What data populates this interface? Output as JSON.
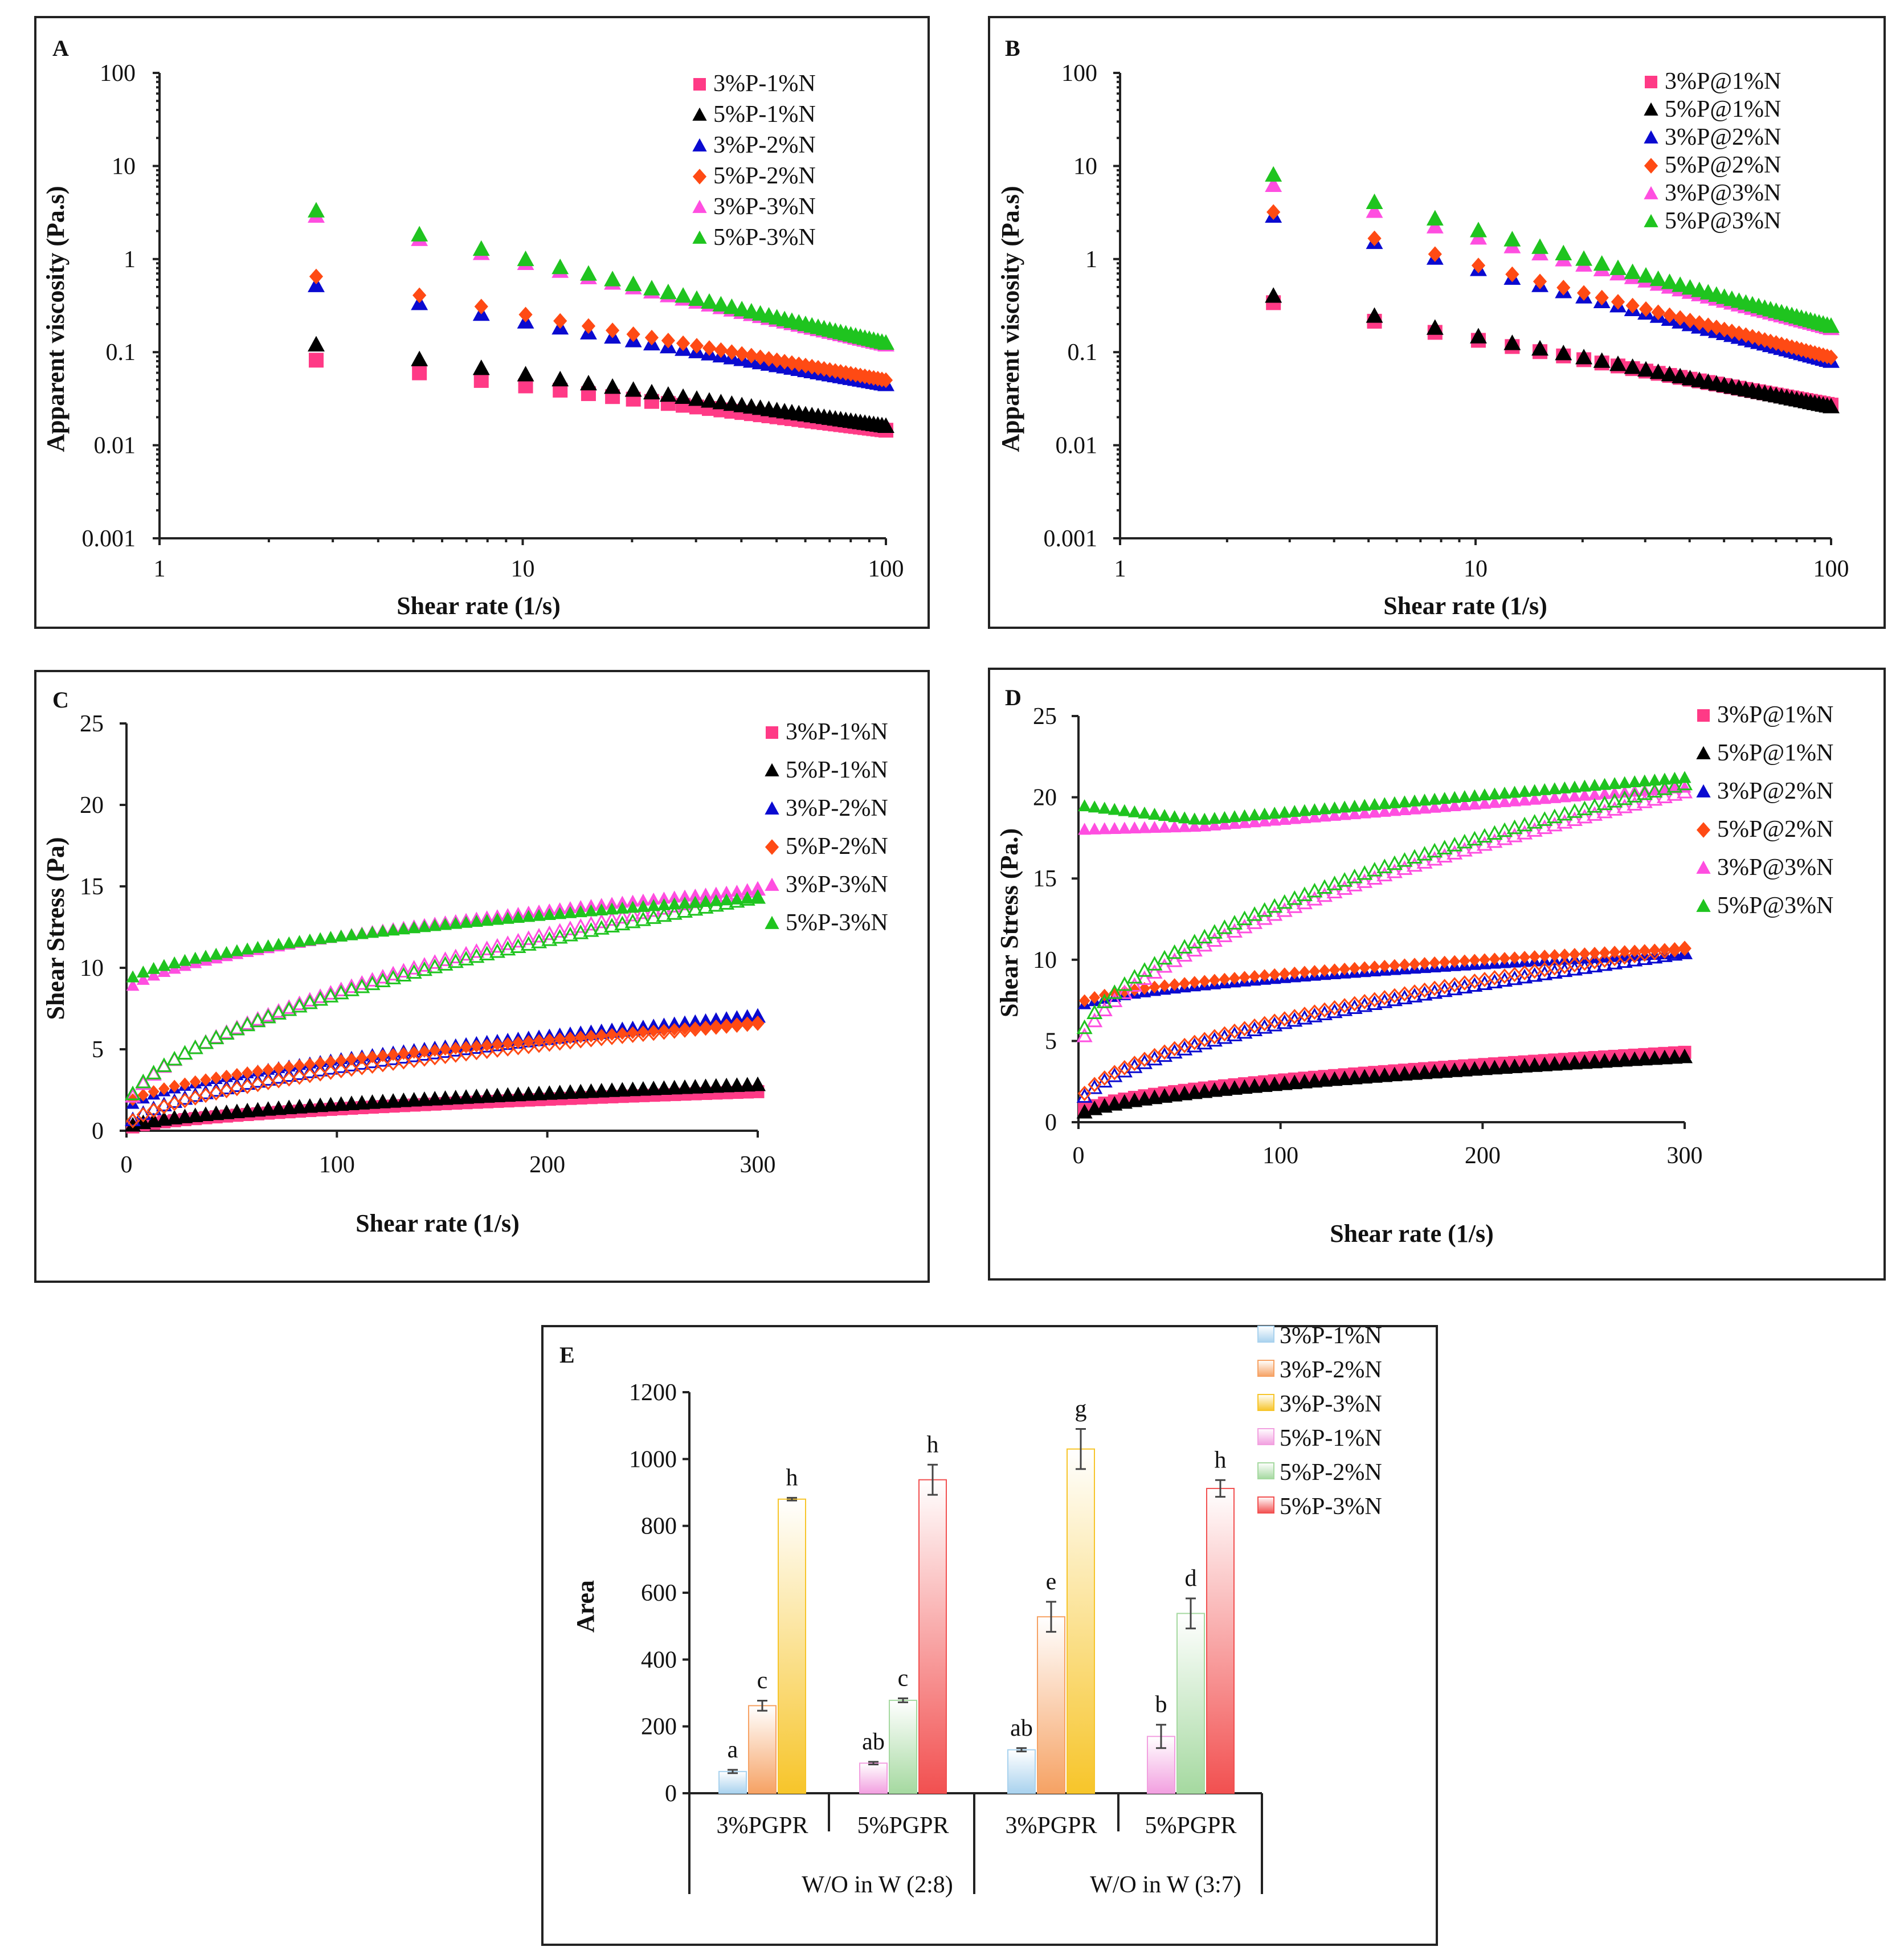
{
  "colors": {
    "pink": "#ff3a86",
    "black": "#000000",
    "blue": "#0a0ad0",
    "orange": "#ff4a14",
    "magenta": "#ff4ee0",
    "green": "#1fc41f",
    "bar_blue": "#a9d2ee",
    "bar_orange": "#f6a264",
    "bar_yellow": "#f7c52a",
    "bar_pink": "#f2a0e0",
    "bar_green": "#a5d9a0",
    "bar_red": "#f25050"
  },
  "chart_data": [
    {
      "id": "A",
      "panel_label": "A",
      "type": "scatter",
      "xscale": "log",
      "yscale": "log",
      "xlabel": "Shear rate (1/s)",
      "ylabel": "Apparent viscosity (Pa.s)",
      "xlim": [
        1,
        100
      ],
      "ylim": [
        0.001,
        100
      ],
      "xticks": [
        1,
        10,
        100
      ],
      "xtick_labels": [
        "1",
        "10",
        "100"
      ],
      "yticks": [
        0.001,
        0.01,
        0.1,
        1,
        10,
        100
      ],
      "ytick_labels": [
        "0.001",
        "0.01",
        "0.1",
        "1",
        "10",
        "100"
      ],
      "legend_position": "top-right",
      "series": [
        {
          "name": "3%P-1%N",
          "marker": "square",
          "color_key": "pink",
          "fit": {
            "type": "power",
            "x0": 2.7,
            "y0": 0.082,
            "x1": 100,
            "y1": 0.0145
          }
        },
        {
          "name": "5%P-1%N",
          "marker": "triangle",
          "color_key": "black",
          "fit": {
            "type": "power",
            "x0": 2.7,
            "y0": 0.12,
            "x1": 100,
            "y1": 0.016
          }
        },
        {
          "name": "3%P-2%N",
          "marker": "triangle",
          "color_key": "blue",
          "fit": {
            "type": "power",
            "x0": 2.7,
            "y0": 0.52,
            "x1": 100,
            "y1": 0.045
          }
        },
        {
          "name": "5%P-2%N",
          "marker": "diamond",
          "color_key": "orange",
          "fit": {
            "type": "power",
            "x0": 2.7,
            "y0": 0.65,
            "x1": 100,
            "y1": 0.05
          }
        },
        {
          "name": "3%P-3%N",
          "marker": "triangle",
          "color_key": "magenta",
          "fit": {
            "type": "power",
            "x0": 2.7,
            "y0": 2.9,
            "x1": 100,
            "y1": 0.12
          }
        },
        {
          "name": "5%P-3%N",
          "marker": "triangle",
          "color_key": "green",
          "fit": {
            "type": "power",
            "x0": 2.7,
            "y0": 3.3,
            "x1": 100,
            "y1": 0.125
          }
        }
      ]
    },
    {
      "id": "B",
      "panel_label": "B",
      "type": "scatter",
      "xscale": "log",
      "yscale": "log",
      "xlabel": "Shear rate (1/s)",
      "ylabel": "Apparent viscosity (Pa.s)",
      "xlim": [
        1,
        100
      ],
      "ylim": [
        0.001,
        100
      ],
      "xticks": [
        1,
        10,
        100
      ],
      "xtick_labels": [
        "1",
        "10",
        "100"
      ],
      "yticks": [
        0.001,
        0.01,
        0.1,
        1,
        10,
        100
      ],
      "ytick_labels": [
        "0.001",
        "0.01",
        "0.1",
        "1",
        "10",
        "100"
      ],
      "legend_position": "top-right",
      "series": [
        {
          "name": "3%P@1%N",
          "marker": "square",
          "color_key": "pink",
          "fit": {
            "type": "power",
            "x0": 2.7,
            "y0": 0.34,
            "x1": 100,
            "y1": 0.027
          }
        },
        {
          "name": "5%P@1%N",
          "marker": "triangle",
          "color_key": "black",
          "fit": {
            "type": "power",
            "x0": 2.7,
            "y0": 0.4,
            "x1": 100,
            "y1": 0.026
          }
        },
        {
          "name": "3%P@2%N",
          "marker": "triangle",
          "color_key": "blue",
          "fit": {
            "type": "power",
            "x0": 2.7,
            "y0": 2.9,
            "x1": 100,
            "y1": 0.08
          }
        },
        {
          "name": "5%P@2%N",
          "marker": "diamond",
          "color_key": "orange",
          "fit": {
            "type": "power",
            "x0": 2.7,
            "y0": 3.2,
            "x1": 100,
            "y1": 0.088
          }
        },
        {
          "name": "3%P@3%N",
          "marker": "triangle",
          "color_key": "magenta",
          "fit": {
            "type": "power",
            "x0": 2.7,
            "y0": 6.2,
            "x1": 100,
            "y1": 0.18
          }
        },
        {
          "name": "5%P@3%N",
          "marker": "triangle",
          "color_key": "green",
          "fit": {
            "type": "power",
            "x0": 2.7,
            "y0": 8.0,
            "x1": 100,
            "y1": 0.19
          }
        }
      ]
    },
    {
      "id": "C",
      "panel_label": "C",
      "type": "scatter",
      "xlabel": "Shear rate (1/s)",
      "ylabel": "Shear Stress (Pa)",
      "xlim": [
        0,
        300
      ],
      "ylim": [
        0,
        25
      ],
      "xticks": [
        0,
        100,
        200,
        300
      ],
      "xtick_labels": [
        "0",
        "100",
        "200",
        "300"
      ],
      "yticks": [
        0,
        5,
        10,
        15,
        20,
        25
      ],
      "ytick_labels": [
        "0",
        "5",
        "10",
        "15",
        "20",
        "25"
      ],
      "legend_position": "top-right",
      "series": [
        {
          "name": "3%P-1%N",
          "marker": "square",
          "color_key": "pink",
          "up": [
            [
              0,
              0.05
            ],
            [
              300,
              2.4
            ]
          ],
          "down": [
            [
              0,
              0.05
            ],
            [
              300,
              2.4
            ]
          ]
        },
        {
          "name": "5%P-1%N",
          "marker": "triangle",
          "color_key": "black",
          "up": [
            [
              0,
              0.1
            ],
            [
              300,
              2.8
            ]
          ],
          "down": [
            [
              0,
              0.1
            ],
            [
              300,
              2.8
            ]
          ]
        },
        {
          "name": "3%P-2%N",
          "marker": "triangle",
          "color_key": "blue",
          "up": [
            [
              0,
              1.2
            ],
            [
              300,
              7.0
            ]
          ],
          "down": [
            [
              0,
              0.1
            ],
            [
              300,
              7.0
            ]
          ]
        },
        {
          "name": "5%P-2%N",
          "marker": "diamond",
          "color_key": "orange",
          "up": [
            [
              0,
              1.5
            ],
            [
              300,
              6.6
            ]
          ],
          "down": [
            [
              0,
              0.1
            ],
            [
              300,
              6.6
            ]
          ]
        },
        {
          "name": "3%P-3%N",
          "marker": "triangle",
          "color_key": "magenta",
          "up": [
            [
              0,
              8.4
            ],
            [
              300,
              14.8
            ]
          ],
          "down": [
            [
              0,
              1.0
            ],
            [
              300,
              14.8
            ]
          ]
        },
        {
          "name": "5%P-3%N",
          "marker": "triangle",
          "color_key": "green",
          "up": [
            [
              0,
              9.0
            ],
            [
              300,
              14.3
            ]
          ],
          "down": [
            [
              0,
              1.2
            ],
            [
              300,
              14.3
            ]
          ]
        }
      ]
    },
    {
      "id": "D",
      "panel_label": "D",
      "type": "scatter",
      "xlabel": "Shear rate (1/s)",
      "ylabel": "Shear Stress (Pa.)",
      "xlim": [
        0,
        300
      ],
      "ylim": [
        0,
        25
      ],
      "xticks": [
        0,
        100,
        200,
        300
      ],
      "xtick_labels": [
        "0",
        "100",
        "200",
        "300"
      ],
      "yticks": [
        0,
        5,
        10,
        15,
        20,
        25
      ],
      "ytick_labels": [
        "0",
        "5",
        "10",
        "15",
        "20",
        "25"
      ],
      "legend_position": "top-right",
      "series": [
        {
          "name": "3%P@1%N",
          "marker": "square",
          "color_key": "pink",
          "up": [
            [
              0,
              0.5
            ],
            [
              300,
              4.3
            ]
          ],
          "down": [
            [
              0,
              0.5
            ],
            [
              300,
              4.3
            ]
          ]
        },
        {
          "name": "5%P@1%N",
          "marker": "triangle",
          "color_key": "black",
          "up": [
            [
              0,
              0.3
            ],
            [
              300,
              4.0
            ]
          ],
          "down": [
            [
              0,
              0.3
            ],
            [
              300,
              4.0
            ]
          ]
        },
        {
          "name": "3%P@2%N",
          "marker": "triangle",
          "color_key": "blue",
          "up": [
            [
              0,
              7.0
            ],
            [
              300,
              10.4
            ]
          ],
          "down": [
            [
              0,
              0.8
            ],
            [
              300,
              10.4
            ]
          ]
        },
        {
          "name": "5%P@2%N",
          "marker": "diamond",
          "color_key": "orange",
          "up": [
            [
              0,
              7.2
            ],
            [
              300,
              10.7
            ]
          ],
          "down": [
            [
              0,
              1.0
            ],
            [
              300,
              10.7
            ]
          ]
        },
        {
          "name": "3%P@3%N",
          "marker": "triangle",
          "color_key": "magenta",
          "up": [
            [
              0,
              18.0
            ],
            [
              60,
              18.2
            ],
            [
              300,
              20.6
            ]
          ],
          "down": [
            [
              0,
              4.0
            ],
            [
              300,
              20.3
            ]
          ]
        },
        {
          "name": "5%P@3%N",
          "marker": "triangle",
          "color_key": "green",
          "up": [
            [
              0,
              19.5
            ],
            [
              60,
              18.6
            ],
            [
              300,
              21.2
            ]
          ],
          "down": [
            [
              0,
              4.5
            ],
            [
              300,
              20.8
            ]
          ]
        }
      ]
    },
    {
      "id": "E",
      "panel_label": "E",
      "type": "bar",
      "ylabel": "Area",
      "ylim": [
        0,
        1200
      ],
      "yticks": [
        0,
        200,
        400,
        600,
        800,
        1000,
        1200
      ],
      "ytick_labels": [
        "0",
        "200",
        "400",
        "600",
        "800",
        "1000",
        "1200"
      ],
      "legend_position": "top-right",
      "groups": [
        "W/O in W  (2:8)",
        "W/O in W  (3:7)"
      ],
      "categories": [
        "3%PGPR",
        "5%PGPR",
        "3%PGPR",
        "5%PGPR"
      ],
      "series": [
        {
          "name": "3%P-1%N",
          "color_key": "bar_blue"
        },
        {
          "name": "3%P-2%N",
          "color_key": "bar_orange"
        },
        {
          "name": "3%P-3%N",
          "color_key": "bar_yellow"
        },
        {
          "name": "5%P-1%N",
          "color_key": "bar_pink"
        },
        {
          "name": "5%P-2%N",
          "color_key": "bar_green"
        },
        {
          "name": "5%P-3%N",
          "color_key": "bar_red"
        }
      ],
      "bars": [
        {
          "category_index": 0,
          "series_index": 0,
          "value": 65,
          "error": 5,
          "label": "a"
        },
        {
          "category_index": 0,
          "series_index": 1,
          "value": 262,
          "error": 15,
          "label": "c"
        },
        {
          "category_index": 0,
          "series_index": 2,
          "value": 880,
          "error": 4,
          "label": "h"
        },
        {
          "category_index": 1,
          "series_index": 3,
          "value": 90,
          "error": 4,
          "label": "ab"
        },
        {
          "category_index": 1,
          "series_index": 4,
          "value": 278,
          "error": 6,
          "label": "c"
        },
        {
          "category_index": 1,
          "series_index": 5,
          "value": 938,
          "error": 45,
          "label": "h"
        },
        {
          "category_index": 2,
          "series_index": 0,
          "value": 130,
          "error": 5,
          "label": "ab"
        },
        {
          "category_index": 2,
          "series_index": 1,
          "value": 528,
          "error": 45,
          "label": "e"
        },
        {
          "category_index": 2,
          "series_index": 2,
          "value": 1030,
          "error": 60,
          "label": "g"
        },
        {
          "category_index": 3,
          "series_index": 3,
          "value": 170,
          "error": 35,
          "label": "b"
        },
        {
          "category_index": 3,
          "series_index": 4,
          "value": 538,
          "error": 45,
          "label": "d"
        },
        {
          "category_index": 3,
          "series_index": 5,
          "value": 912,
          "error": 25,
          "label": "h"
        }
      ]
    }
  ]
}
